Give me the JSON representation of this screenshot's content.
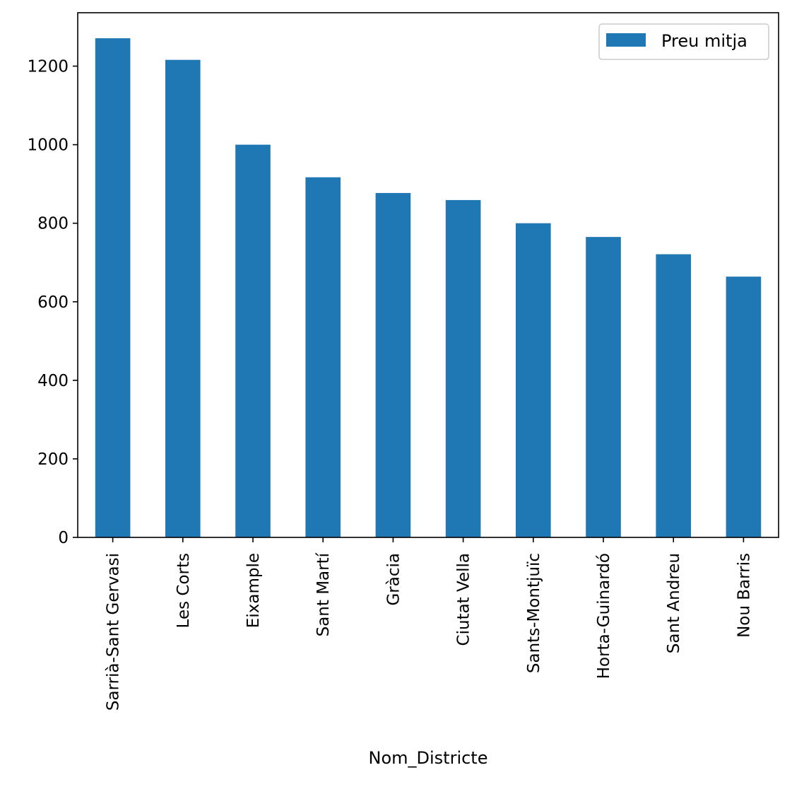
{
  "chart_data": {
    "type": "bar",
    "title": "",
    "xlabel": "Nom_Districte",
    "ylabel": "",
    "ylim": [
      0,
      1336
    ],
    "yticks": [
      0,
      200,
      400,
      600,
      800,
      1000,
      1200
    ],
    "grid": false,
    "legend_position": "top-right",
    "bar_color": "#1f77b4",
    "categories": [
      "Sarrià-Sant Gervasi",
      "Les Corts",
      "Eixample",
      "Sant Martí",
      "Gràcia",
      "Ciutat Vella",
      "Sants-Montjuïc",
      "Horta-Guinardó",
      "Sant Andreu",
      "Nou Barris"
    ],
    "series": [
      {
        "name": "Preu mitja",
        "values": [
          1271,
          1216,
          1000,
          917,
          877,
          859,
          800,
          765,
          721,
          664
        ]
      }
    ]
  }
}
